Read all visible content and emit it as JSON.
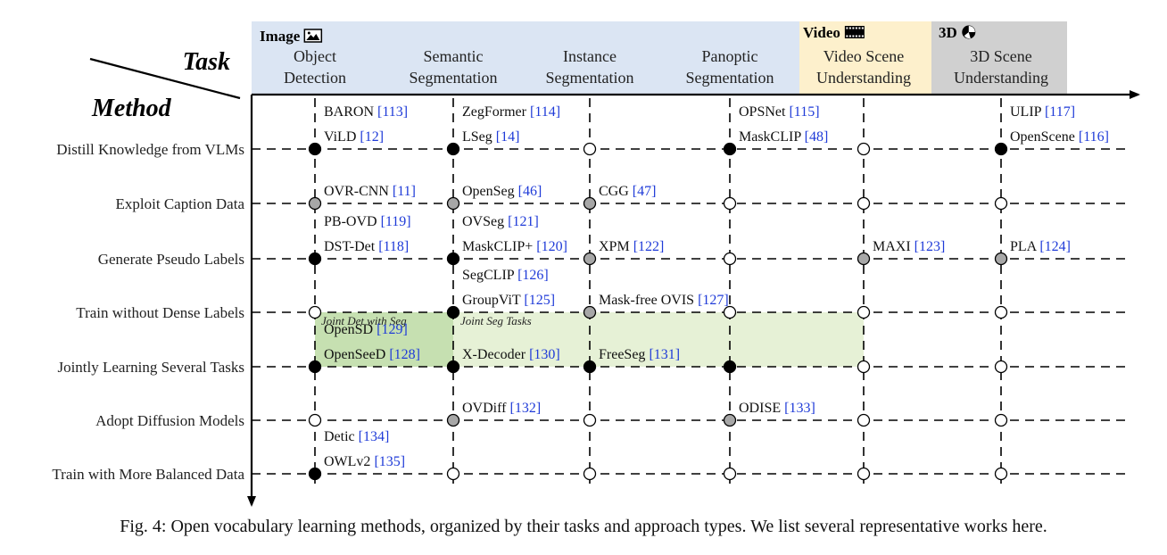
{
  "axes": {
    "task_label": "Task",
    "method_label": "Method"
  },
  "colors": {
    "image_band": "#dbe5f3",
    "video_band": "#fdf0cc",
    "scene3d_band": "#d0d0d0",
    "green_light": "#e6f1d6",
    "green_dark": "#c6e0b1",
    "ref_blue": "#1f3bd8",
    "dot_black": "#000000",
    "dot_gray": "#a7a7a7",
    "dot_white": "#ffffff"
  },
  "groups": [
    {
      "label": "Image",
      "icon": "picture-icon"
    },
    {
      "label": "Video",
      "icon": "film-strip-icon"
    },
    {
      "label": "3D",
      "icon": "globe-icon"
    }
  ],
  "columns": [
    {
      "line1": "Object",
      "line2": "Detection"
    },
    {
      "line1": "Semantic",
      "line2": "Segmentation"
    },
    {
      "line1": "Instance",
      "line2": "Segmentation"
    },
    {
      "line1": "Panoptic",
      "line2": "Segmentation"
    },
    {
      "line1": "Video Scene",
      "line2": "Understanding"
    },
    {
      "line1": "3D Scene",
      "line2": "Understanding"
    }
  ],
  "rows": [
    "Distill Knowledge from VLMs",
    "Exploit Caption Data",
    "Generate Pseudo Labels",
    "Train without Dense Labels",
    "Jointly Learning Several Tasks",
    "Adopt Diffusion Models",
    "Train with More Balanced Data"
  ],
  "dots": [
    [
      "black",
      "black",
      "white",
      "black",
      "white",
      "black"
    ],
    [
      "gray",
      "gray",
      "gray",
      "white",
      "white",
      "white"
    ],
    [
      "black",
      "black",
      "gray",
      "white",
      "gray",
      "gray"
    ],
    [
      "white",
      "black",
      "gray",
      "white",
      "white",
      "white"
    ],
    [
      "black",
      "black",
      "black",
      "black",
      "white",
      "white"
    ],
    [
      "white",
      "gray",
      "white",
      "gray",
      "white",
      "white"
    ],
    [
      "black",
      "white",
      "white",
      "white",
      "white",
      "white"
    ]
  ],
  "regions": [
    {
      "label": "Joint Det with Seg"
    },
    {
      "label": "Joint Seg Tasks"
    }
  ],
  "methods": [
    {
      "name": "BARON",
      "ref": "[113]",
      "row": 0,
      "col": 0,
      "slot": "upper"
    },
    {
      "name": "ViLD",
      "ref": "[12]",
      "row": 0,
      "col": 0,
      "slot": "lower"
    },
    {
      "name": "ZegFormer",
      "ref": "[114]",
      "row": 0,
      "col": 1,
      "slot": "upper"
    },
    {
      "name": "LSeg",
      "ref": "[14]",
      "row": 0,
      "col": 1,
      "slot": "lower"
    },
    {
      "name": "OPSNet",
      "ref": "[115]",
      "row": 0,
      "col": 3,
      "slot": "upper"
    },
    {
      "name": "MaskCLIP",
      "ref": "[48]",
      "row": 0,
      "col": 3,
      "slot": "lower"
    },
    {
      "name": "ULIP",
      "ref": "[117]",
      "row": 0,
      "col": 5,
      "slot": "upper"
    },
    {
      "name": "OpenScene",
      "ref": "[116]",
      "row": 0,
      "col": 5,
      "slot": "lower"
    },
    {
      "name": "OVR-CNN",
      "ref": "[11]",
      "row": 1,
      "col": 0,
      "slot": "lower"
    },
    {
      "name": "OpenSeg",
      "ref": "[46]",
      "row": 1,
      "col": 1,
      "slot": "lower"
    },
    {
      "name": "CGG",
      "ref": "[47]",
      "row": 1,
      "col": 2,
      "slot": "lower"
    },
    {
      "name": "PB-OVD",
      "ref": "[119]",
      "row": 2,
      "col": 0,
      "slot": "upper"
    },
    {
      "name": "DST-Det",
      "ref": "[118]",
      "row": 2,
      "col": 0,
      "slot": "lower"
    },
    {
      "name": "OVSeg",
      "ref": "[121]",
      "row": 2,
      "col": 1,
      "slot": "upper"
    },
    {
      "name": "MaskCLIP+",
      "ref": "[120]",
      "row": 2,
      "col": 1,
      "slot": "lower"
    },
    {
      "name": "XPM",
      "ref": "[122]",
      "row": 2,
      "col": 2,
      "slot": "lower"
    },
    {
      "name": "MAXI",
      "ref": "[123]",
      "row": 2,
      "col": 4,
      "slot": "lower"
    },
    {
      "name": "PLA",
      "ref": "[124]",
      "row": 2,
      "col": 5,
      "slot": "lower"
    },
    {
      "name": "SegCLIP",
      "ref": "[126]",
      "row": 3,
      "col": 1,
      "slot": "upper"
    },
    {
      "name": "GroupViT",
      "ref": "[125]",
      "row": 3,
      "col": 1,
      "slot": "lower"
    },
    {
      "name": "Mask-free OVIS",
      "ref": "[127]",
      "row": 3,
      "col": 2,
      "slot": "lower"
    },
    {
      "name": "OpenSD",
      "ref": "[129]",
      "row": 4,
      "col": 0,
      "slot": "upper"
    },
    {
      "name": "OpenSeeD",
      "ref": "[128]",
      "row": 4,
      "col": 0,
      "slot": "lower"
    },
    {
      "name": "X-Decoder",
      "ref": "[130]",
      "row": 4,
      "col": 1,
      "slot": "lower"
    },
    {
      "name": "FreeSeg",
      "ref": "[131]",
      "row": 4,
      "col": 2,
      "slot": "lower"
    },
    {
      "name": "OVDiff",
      "ref": "[132]",
      "row": 5,
      "col": 1,
      "slot": "lower"
    },
    {
      "name": "ODISE",
      "ref": "[133]",
      "row": 5,
      "col": 3,
      "slot": "lower"
    },
    {
      "name": "Detic",
      "ref": "[134]",
      "row": 6,
      "col": 0,
      "slot": "upper"
    },
    {
      "name": "OWLv2",
      "ref": "[135]",
      "row": 6,
      "col": 0,
      "slot": "lower"
    }
  ],
  "caption": "Fig. 4: Open vocabulary learning methods, organized by their tasks and approach types. We list several representative works here."
}
